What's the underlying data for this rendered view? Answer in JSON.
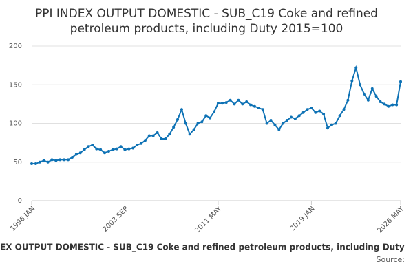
{
  "chart_data": {
    "type": "line",
    "title": [
      "PPI INDEX OUTPUT DOMESTIC - SUB_C19 Coke and refined",
      "petroleum products, including Duty 2015=100"
    ],
    "footer_title": "EX OUTPUT DOMESTIC - SUB_C19 Coke and refined petroleum products, including Duty",
    "source": "Source:",
    "categories": [
      "1996 JAN",
      null,
      null,
      null,
      null,
      null,
      null,
      null,
      null,
      null,
      null,
      null,
      null,
      null,
      null,
      null,
      null,
      null,
      null,
      null,
      null,
      null,
      null,
      "2003 SEP",
      null,
      null,
      null,
      null,
      null,
      null,
      null,
      null,
      null,
      null,
      null,
      null,
      null,
      null,
      null,
      null,
      null,
      null,
      null,
      null,
      null,
      null,
      "2011 MAY",
      null,
      null,
      null,
      null,
      null,
      null,
      null,
      null,
      null,
      null,
      null,
      null,
      null,
      null,
      null,
      null,
      null,
      null,
      null,
      null,
      null,
      null,
      "2019 JAN",
      null,
      null,
      null,
      null,
      null,
      null,
      null,
      null,
      null,
      null,
      null,
      null,
      null,
      null,
      null,
      null,
      null,
      null,
      null,
      null,
      null,
      "2026 MAY"
    ],
    "series": [
      {
        "name": "PPI INDEX OUTPUT DOMESTIC - SUB_C19 Coke and refined petroleum products, including Duty 2015=100",
        "color": "#0e72b5",
        "values": [
          48,
          48,
          50,
          52,
          50,
          53,
          52,
          53,
          53,
          53,
          56,
          60,
          62,
          66,
          70,
          72,
          67,
          66,
          62,
          64,
          66,
          67,
          70,
          66,
          67,
          68,
          72,
          74,
          78,
          84,
          84,
          88,
          80,
          80,
          86,
          95,
          105,
          118,
          100,
          86,
          92,
          100,
          102,
          110,
          107,
          115,
          126,
          126,
          127,
          130,
          125,
          130,
          125,
          128,
          124,
          122,
          120,
          118,
          100,
          104,
          98,
          92,
          100,
          104,
          108,
          106,
          110,
          114,
          118,
          120,
          114,
          116,
          112,
          94,
          98,
          100,
          110,
          118,
          130,
          155,
          172,
          150,
          138,
          130,
          145,
          135,
          128,
          125,
          122,
          124,
          124,
          154
        ]
      }
    ],
    "ylim": [
      0,
      200
    ],
    "yticks": [
      0,
      50,
      100,
      150,
      200
    ],
    "grid": true
  }
}
